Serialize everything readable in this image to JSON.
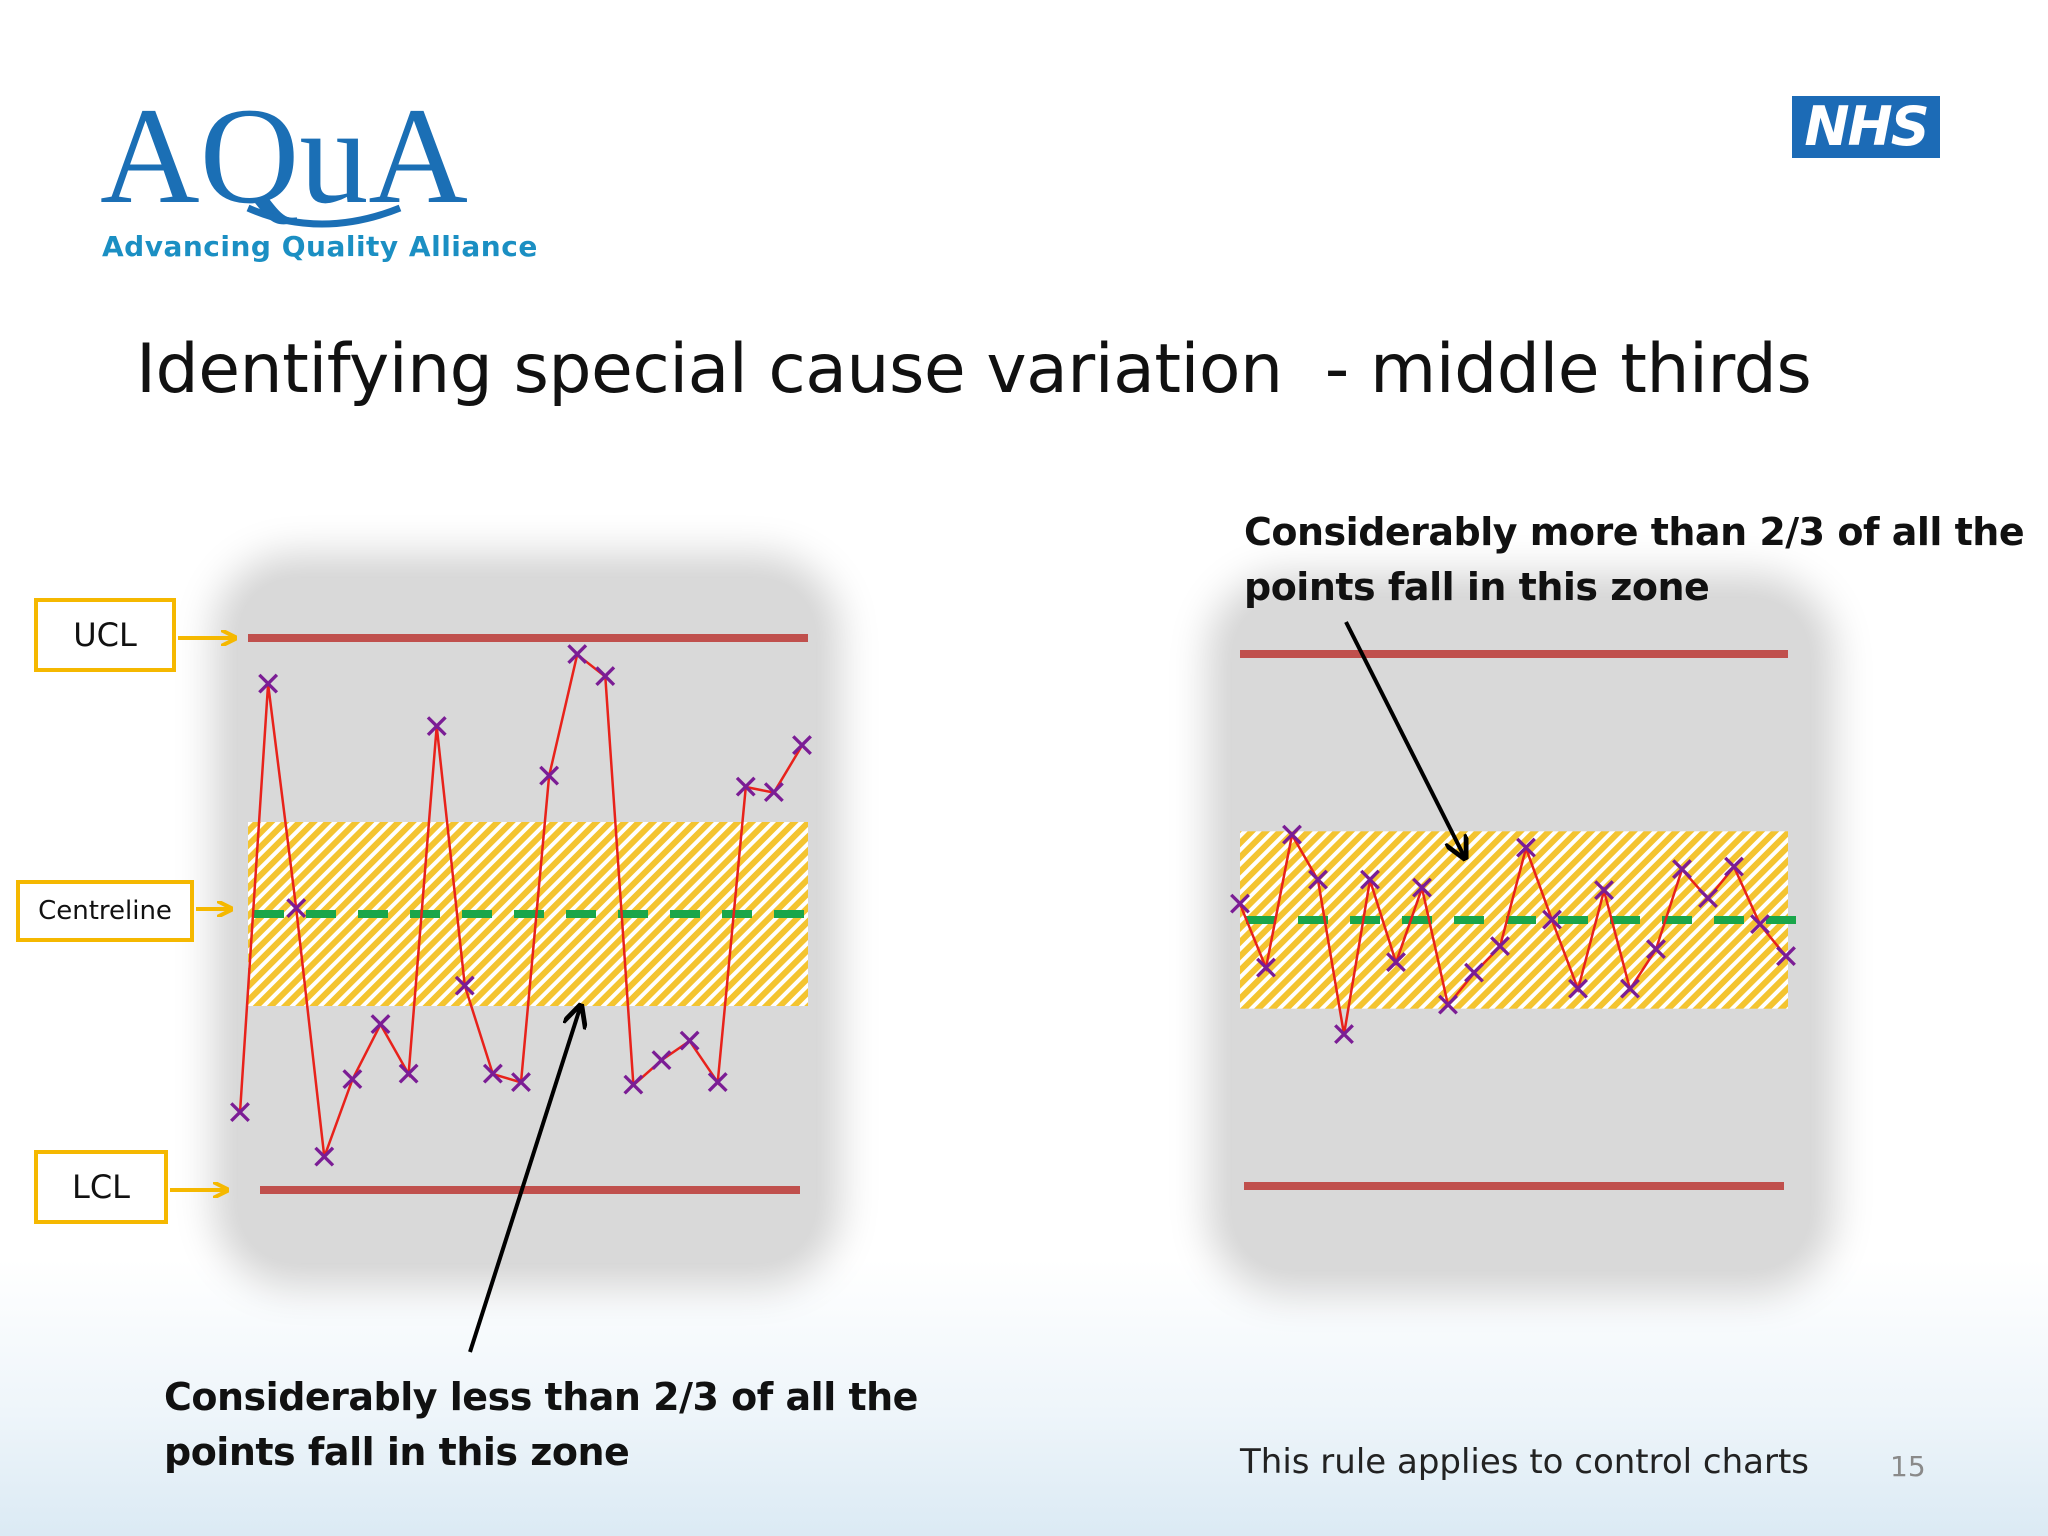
{
  "branding": {
    "logo_text": "AQuA",
    "tagline": "Advancing Quality Alliance",
    "nhs_text": "NHS",
    "primary_color": "#1b6fb5",
    "accent_color": "#1b8fc3"
  },
  "title": "Identifying special cause variation  - middle thirds",
  "labels": {
    "ucl": "UCL",
    "centreline": "Centreline",
    "lcl": "LCL"
  },
  "callouts": {
    "left": [
      "Considerably less than 2/3 of all the",
      "points fall in this zone"
    ],
    "right": [
      "Considerably more than 2/3 of all the",
      "points fall in this zone"
    ]
  },
  "footer_note": "This rule applies to control charts",
  "page_number": "15",
  "colors": {
    "limit_line": "#c0504d",
    "centreline": "#1aa64a",
    "zone_fill": "#f4c430",
    "series_line": "#e8221b",
    "marker": "#7b1d95",
    "label_border": "#f5b800",
    "panel": "#d9d9d9"
  },
  "chart_data": [
    {
      "type": "line",
      "title": "",
      "xlabel": "",
      "ylabel": "",
      "ylim": [
        -3,
        3
      ],
      "ucl": 3,
      "centreline": 0,
      "lcl": -3,
      "middle_third": [
        -1,
        1
      ],
      "grid": false,
      "marker": "x",
      "values": [
        -2.16,
        2.5,
        0.06,
        -2.64,
        -1.8,
        -1.2,
        -1.74,
        2.04,
        -0.78,
        -1.74,
        -1.83,
        1.5,
        2.82,
        2.58,
        -1.86,
        -1.59,
        -1.38,
        -1.83,
        1.38,
        1.32,
        1.83
      ]
    },
    {
      "type": "line",
      "title": "",
      "xlabel": "",
      "ylabel": "",
      "ylim": [
        -3,
        3
      ],
      "ucl": 3,
      "centreline": 0,
      "lcl": -3,
      "middle_third": [
        -1,
        1
      ],
      "grid": false,
      "marker": "x",
      "values": [
        0.18,
        -0.54,
        0.96,
        0.45,
        -1.29,
        0.45,
        -0.48,
        0.36,
        -0.96,
        -0.6,
        -0.3,
        0.81,
        0.0,
        -0.78,
        0.33,
        -0.78,
        -0.33,
        0.57,
        0.24,
        0.6,
        -0.05,
        -0.41
      ]
    }
  ]
}
